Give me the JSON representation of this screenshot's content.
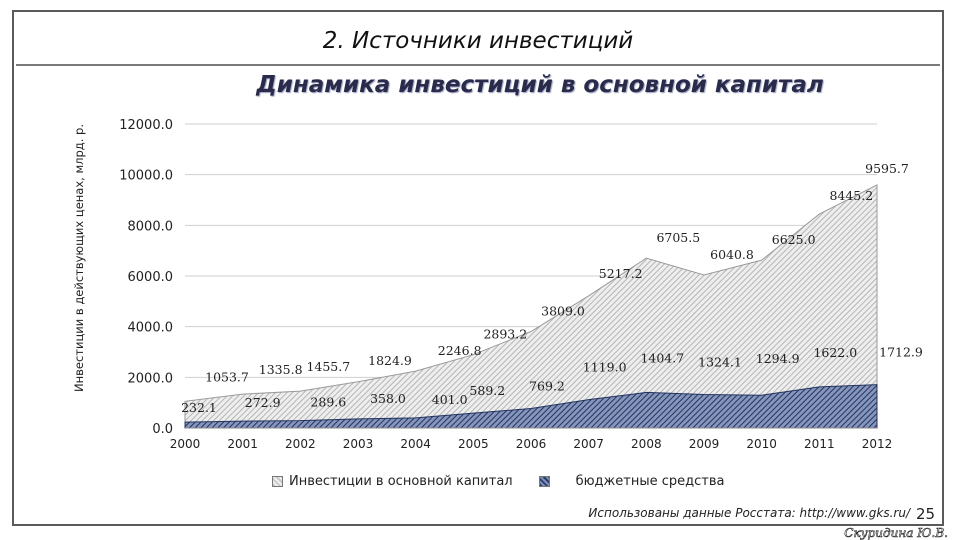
{
  "slide": {
    "title": "2. Источники инвестиций",
    "source": "Использованы данные Росстата: http://www.gks.ru/",
    "page_number": "25",
    "author": "Скуридина Ю.В."
  },
  "chart_data": {
    "type": "area",
    "title": "Динамика инвестиций в основной капитал",
    "ylabel": "Инвестиции в действующих ценах, млрд. р.",
    "xlabel": "",
    "categories": [
      "2000",
      "2001",
      "2002",
      "2003",
      "2004",
      "2005",
      "2006",
      "2007",
      "2008",
      "2009",
      "2010",
      "2011",
      "2012"
    ],
    "series": [
      {
        "name": "Инвестиции в основной капитал",
        "values": [
          1053.7,
          1335.8,
          1455.7,
          1824.9,
          2246.8,
          2893.2,
          3809.0,
          5217.2,
          6705.5,
          6040.8,
          6625.0,
          8445.2,
          9595.7
        ],
        "color": "#d0d0d0"
      },
      {
        "name": "бюджетные средства",
        "values": [
          232.1,
          272.9,
          289.6,
          358.0,
          401.0,
          589.2,
          769.2,
          1119.0,
          1404.7,
          1324.1,
          1294.9,
          1622.0,
          1712.9
        ],
        "color": "#2b3e6b"
      }
    ],
    "ylim": [
      0,
      12000
    ],
    "yticks": [
      "0.0",
      "2000.0",
      "4000.0",
      "6000.0",
      "8000.0",
      "10000.0",
      "12000.0"
    ],
    "ytick_values": [
      0,
      2000,
      4000,
      6000,
      8000,
      10000,
      12000
    ],
    "grid": true,
    "legend": "bottom"
  }
}
